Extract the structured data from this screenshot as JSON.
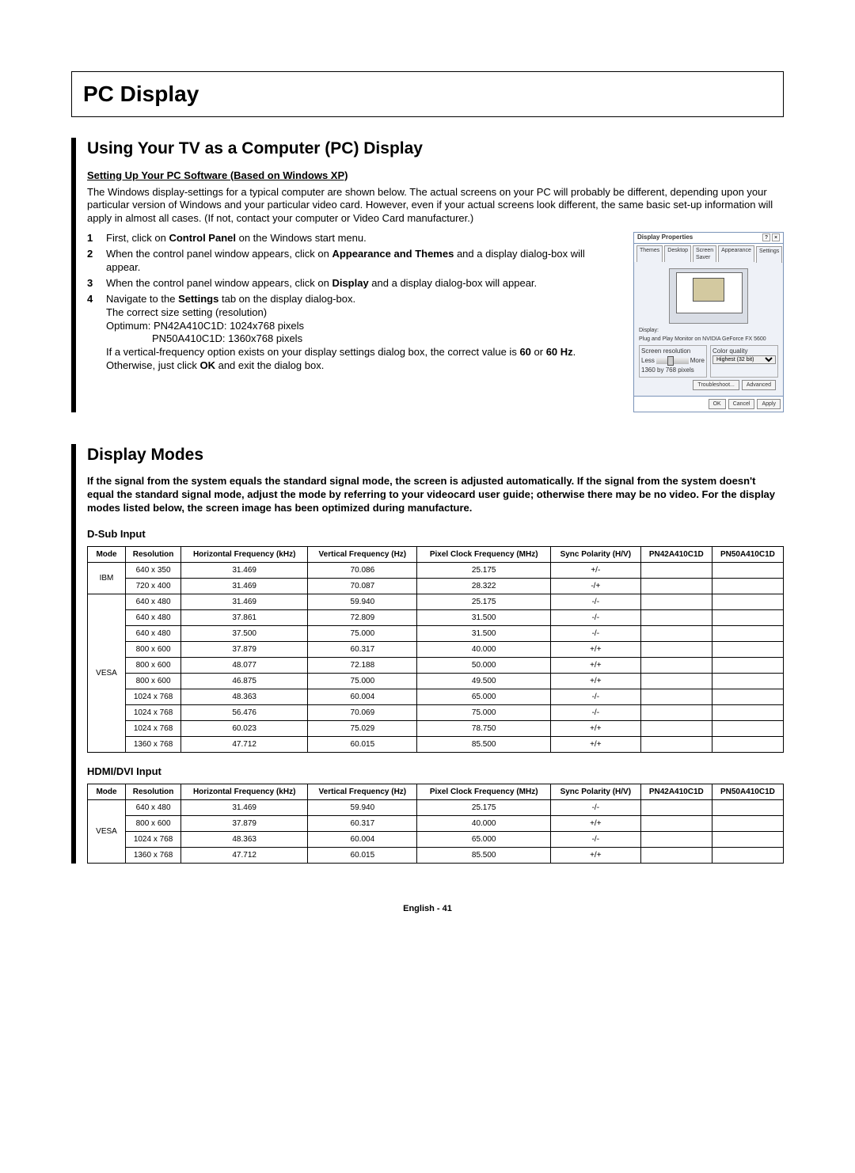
{
  "page_title": "PC Display",
  "section1": {
    "heading": "Using Your TV as a Computer (PC) Display",
    "subhead": "Setting Up Your PC Software (Based on Windows XP)",
    "intro": "The Windows display-settings for a typical computer are shown below. The actual screens on your PC will probably be different, depending upon your particular version of Windows and your particular video card. However, even if your actual screens look different, the same basic set-up information will apply in almost all cases. (If not, contact your computer or Video Card manufacturer.)",
    "steps": {
      "s1_pre": "First, click on ",
      "s1_bold": "Control Panel",
      "s1_post": " on the Windows start menu.",
      "s2_pre": "When the control panel window appears, click on ",
      "s2_bold": "Appearance and Themes",
      "s2_post": " and a display dialog-box will appear.",
      "s3_pre": "When the control panel window appears, click on ",
      "s3_bold": "Display",
      "s3_post": " and a display dialog-box will appear.",
      "s4_pre": "Navigate to the ",
      "s4_bold": "Settings",
      "s4_post": " tab on the display dialog-box.",
      "s4_line2": "The correct size setting (resolution)",
      "s4_line3": "Optimum: PN42A410C1D: 1024x768 pixels",
      "s4_line4": "PN50A410C1D: 1360x768 pixels",
      "s4_extra_a": "If a vertical-frequency option exists on your display settings dialog box, the correct value is ",
      "s4_extra_b1": "60",
      "s4_extra_mid": " or ",
      "s4_extra_b2": "60 Hz",
      "s4_extra_c": ". Otherwise, just click ",
      "s4_extra_ok": "OK",
      "s4_extra_d": " and exit the dialog box."
    },
    "dialog": {
      "title": "Display Properties",
      "tabs": [
        "Themes",
        "Desktop",
        "Screen Saver",
        "Appearance",
        "Settings"
      ],
      "display_lbl": "Display:",
      "display_txt": "Plug and Play Monitor on NVIDIA GeForce FX 5600",
      "res_lbl": "Screen resolution",
      "res_less": "Less",
      "res_more": "More",
      "res_txt": "1360 by 768 pixels",
      "qual_lbl": "Color quality",
      "qual_sel": "Highest (32 bit)",
      "btn_tb": "Troubleshoot...",
      "btn_adv": "Advanced",
      "btn_ok": "OK",
      "btn_cancel": "Cancel",
      "btn_apply": "Apply"
    }
  },
  "section2": {
    "heading": "Display Modes",
    "note": "If the signal from the system equals the standard signal mode, the screen is adjusted automatically. If the signal from the system doesn't equal the standard signal mode, adjust the mode by referring to your videocard user guide; otherwise there may be no video. For the display modes listed below, the screen image has been optimized during manufacture.",
    "headers": [
      "Mode",
      "Resolution",
      "Horizontal Frequency (kHz)",
      "Vertical Frequency (Hz)",
      "Pixel Clock Frequency (MHz)",
      "Sync Polarity (H/V)",
      "PN42A410C1D",
      "PN50A410C1D"
    ],
    "dsub_label": "D-Sub Input",
    "dsub_rows": [
      {
        "mode": "IBM",
        "span": 2,
        "res": "640 x 350",
        "hf": "31.469",
        "vf": "70.086",
        "pc": "25.175",
        "sp": "+/-"
      },
      {
        "res": "720 x 400",
        "hf": "31.469",
        "vf": "70.087",
        "pc": "28.322",
        "sp": "-/+"
      },
      {
        "mode": "VESA",
        "span": 10,
        "res": "640 x 480",
        "hf": "31.469",
        "vf": "59.940",
        "pc": "25.175",
        "sp": "-/-"
      },
      {
        "res": "640 x 480",
        "hf": "37.861",
        "vf": "72.809",
        "pc": "31.500",
        "sp": "-/-"
      },
      {
        "res": "640 x 480",
        "hf": "37.500",
        "vf": "75.000",
        "pc": "31.500",
        "sp": "-/-"
      },
      {
        "res": "800 x 600",
        "hf": "37.879",
        "vf": "60.317",
        "pc": "40.000",
        "sp": "+/+"
      },
      {
        "res": "800 x 600",
        "hf": "48.077",
        "vf": "72.188",
        "pc": "50.000",
        "sp": "+/+"
      },
      {
        "res": "800 x 600",
        "hf": "46.875",
        "vf": "75.000",
        "pc": "49.500",
        "sp": "+/+"
      },
      {
        "res": "1024 x 768",
        "hf": "48.363",
        "vf": "60.004",
        "pc": "65.000",
        "sp": "-/-"
      },
      {
        "res": "1024 x 768",
        "hf": "56.476",
        "vf": "70.069",
        "pc": "75.000",
        "sp": "-/-"
      },
      {
        "res": "1024 x 768",
        "hf": "60.023",
        "vf": "75.029",
        "pc": "78.750",
        "sp": "+/+"
      },
      {
        "res": "1360 x 768",
        "hf": "47.712",
        "vf": "60.015",
        "pc": "85.500",
        "sp": "+/+"
      }
    ],
    "hdmi_label": "HDMI/DVI Input",
    "hdmi_rows": [
      {
        "mode": "VESA",
        "span": 4,
        "res": "640 x 480",
        "hf": "31.469",
        "vf": "59.940",
        "pc": "25.175",
        "sp": "-/-"
      },
      {
        "res": "800 x 600",
        "hf": "37.879",
        "vf": "60.317",
        "pc": "40.000",
        "sp": "+/+"
      },
      {
        "res": "1024 x 768",
        "hf": "48.363",
        "vf": "60.004",
        "pc": "65.000",
        "sp": "-/-"
      },
      {
        "res": "1360 x 768",
        "hf": "47.712",
        "vf": "60.015",
        "pc": "85.500",
        "sp": "+/+"
      }
    ]
  },
  "footer": {
    "lang": "English - ",
    "page": "41"
  }
}
